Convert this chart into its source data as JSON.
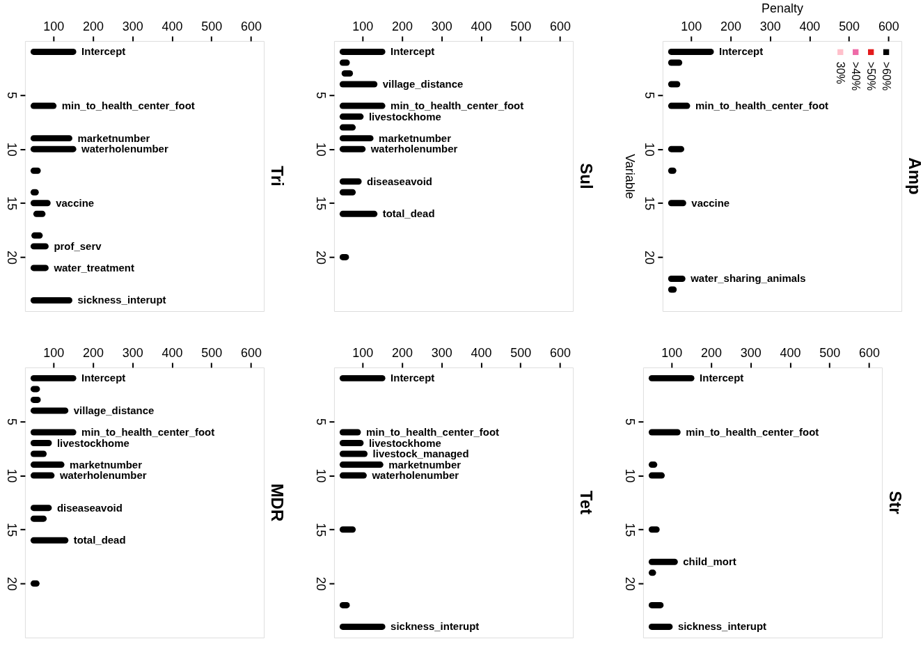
{
  "chart_data": [
    {
      "type": "bar",
      "orientation": "horizontal",
      "title": "Tri",
      "xlim": [
        28,
        633
      ],
      "xticks": [
        100,
        200,
        300,
        400,
        500,
        600
      ],
      "ylim": [
        25,
        0
      ],
      "yticks": [
        5,
        10,
        15,
        20
      ],
      "x": [
        1,
        6,
        9,
        10,
        12,
        14,
        15,
        16,
        18,
        19,
        21,
        24
      ],
      "series": [
        {
          "color": "#000000",
          "base": [
            50,
            50,
            50,
            50,
            50,
            50,
            50,
            57,
            52,
            50,
            50,
            50
          ],
          "values": [
            100,
            50,
            90,
            100,
            10,
            5,
            35,
            15,
            13,
            30,
            30,
            90
          ],
          "value_labels": [
            "Intercept",
            "min_to_health_center_foot",
            "marketnumber",
            "waterholenumber",
            null,
            null,
            "vaccine",
            null,
            null,
            "prof_serv",
            "water_treatment",
            "sickness_interupt"
          ]
        }
      ]
    },
    {
      "type": "bar",
      "orientation": "horizontal",
      "title": "Sul",
      "xlim": [
        28,
        633
      ],
      "xticks": [
        100,
        200,
        300,
        400,
        500,
        600
      ],
      "ylim": [
        25,
        0
      ],
      "yticks": [
        5,
        10,
        15,
        20
      ],
      "x": [
        1,
        2,
        3,
        4,
        6,
        7,
        8,
        9,
        10,
        13,
        14,
        16,
        20
      ],
      "series": [
        {
          "color": "#000000",
          "base": [
            50,
            50,
            55,
            50,
            50,
            50,
            50,
            50,
            50,
            50,
            50,
            50,
            50
          ],
          "values": [
            100,
            10,
            13,
            80,
            100,
            45,
            25,
            70,
            50,
            40,
            25,
            80,
            8
          ],
          "value_labels": [
            "Intercept",
            null,
            null,
            "village_distance",
            "min_to_health_center_foot",
            "livestockhome",
            null,
            "marketnumber",
            "waterholenumber",
            "diseaseavoid",
            null,
            "total_dead",
            null
          ]
        }
      ]
    },
    {
      "type": "bar",
      "orientation": "horizontal",
      "title": "Amp",
      "xlabel": "Penalty",
      "ylabel": "Variable",
      "legend": "top right",
      "xlim": [
        28,
        633
      ],
      "xticks": [
        100,
        200,
        300,
        400,
        500,
        600
      ],
      "ylim": [
        25,
        0
      ],
      "yticks": [
        5,
        10,
        15,
        20
      ],
      "x": [
        1,
        2,
        4,
        6,
        10,
        12,
        15,
        22,
        23
      ],
      "series": [
        {
          "color": "#000000",
          "base": [
            50,
            50,
            50,
            50,
            50,
            50,
            50,
            50,
            50
          ],
          "values": [
            100,
            20,
            15,
            40,
            25,
            5,
            30,
            28,
            6
          ],
          "value_labels": [
            "Intercept",
            null,
            null,
            "min_to_health_center_foot",
            null,
            null,
            "vaccine",
            "water_sharing_animals",
            null
          ]
        },
        {
          "type": "scatter",
          "marker": "square",
          "name": "30%",
          "color": "#ffc0cb",
          "values": [
            null,
            null,
            null,
            null,
            null,
            null,
            null,
            null,
            null
          ]
        },
        {
          "type": "scatter",
          "marker": "square",
          "name": ">40%",
          "color": "#ee6aa7",
          "values": [
            null,
            null,
            null,
            null,
            null,
            null,
            null,
            null,
            null
          ]
        },
        {
          "type": "scatter",
          "marker": "square",
          "name": ">50%",
          "color": "#e31a1c",
          "values": [
            null,
            null,
            null,
            null,
            null,
            null,
            null,
            null,
            null
          ]
        },
        {
          "type": "scatter",
          "marker": "square",
          "name": ">60%",
          "color": "#000000",
          "values": [
            null,
            null,
            null,
            null,
            null,
            null,
            null,
            null,
            null
          ]
        }
      ]
    },
    {
      "type": "bar",
      "orientation": "horizontal",
      "title": "MDR",
      "xlim": [
        28,
        633
      ],
      "xticks": [
        100,
        200,
        300,
        400,
        500,
        600
      ],
      "ylim": [
        25,
        0
      ],
      "yticks": [
        5,
        10,
        15,
        20
      ],
      "x": [
        1,
        2,
        3,
        4,
        6,
        7,
        8,
        9,
        10,
        13,
        14,
        16,
        20
      ],
      "series": [
        {
          "color": "#000000",
          "base": [
            50,
            50,
            50,
            50,
            50,
            50,
            50,
            50,
            50,
            50,
            50,
            50,
            50
          ],
          "values": [
            100,
            8,
            10,
            80,
            100,
            38,
            25,
            70,
            45,
            38,
            25,
            80,
            7
          ],
          "value_labels": [
            "Intercept",
            null,
            null,
            "village_distance",
            "min_to_health_center_foot",
            "livestockhome",
            null,
            "marketnumber",
            "waterholenumber",
            "diseaseavoid",
            null,
            "total_dead",
            null
          ]
        }
      ]
    },
    {
      "type": "bar",
      "orientation": "horizontal",
      "title": "Tet",
      "xlim": [
        28,
        633
      ],
      "xticks": [
        100,
        200,
        300,
        400,
        500,
        600
      ],
      "ylim": [
        25,
        0
      ],
      "yticks": [
        5,
        10,
        15,
        20
      ],
      "x": [
        1,
        6,
        7,
        8,
        9,
        10,
        15,
        22,
        24
      ],
      "series": [
        {
          "color": "#000000",
          "base": [
            50,
            50,
            50,
            50,
            50,
            50,
            50,
            50,
            50
          ],
          "values": [
            100,
            38,
            45,
            55,
            95,
            53,
            25,
            10,
            100
          ],
          "value_labels": [
            "Intercept",
            "min_to_health_center_foot",
            "livestockhome",
            "livestock_managed",
            "marketnumber",
            "waterholenumber",
            null,
            null,
            "sickness_interupt"
          ]
        }
      ]
    },
    {
      "type": "bar",
      "orientation": "horizontal",
      "title": "Str",
      "xlim": [
        28,
        633
      ],
      "xticks": [
        100,
        200,
        300,
        400,
        500,
        600
      ],
      "ylim": [
        25,
        0
      ],
      "yticks": [
        5,
        10,
        15,
        20
      ],
      "x": [
        1,
        6,
        9,
        10,
        15,
        18,
        19,
        22,
        24
      ],
      "series": [
        {
          "color": "#000000",
          "base": [
            50,
            50,
            50,
            50,
            50,
            50,
            50,
            50,
            50
          ],
          "values": [
            100,
            65,
            6,
            25,
            12,
            58,
            3,
            22,
            45
          ],
          "value_labels": [
            "Intercept",
            "min_to_health_center_foot",
            null,
            null,
            null,
            "child_mort",
            null,
            null,
            "sickness_interupt"
          ]
        }
      ]
    }
  ]
}
